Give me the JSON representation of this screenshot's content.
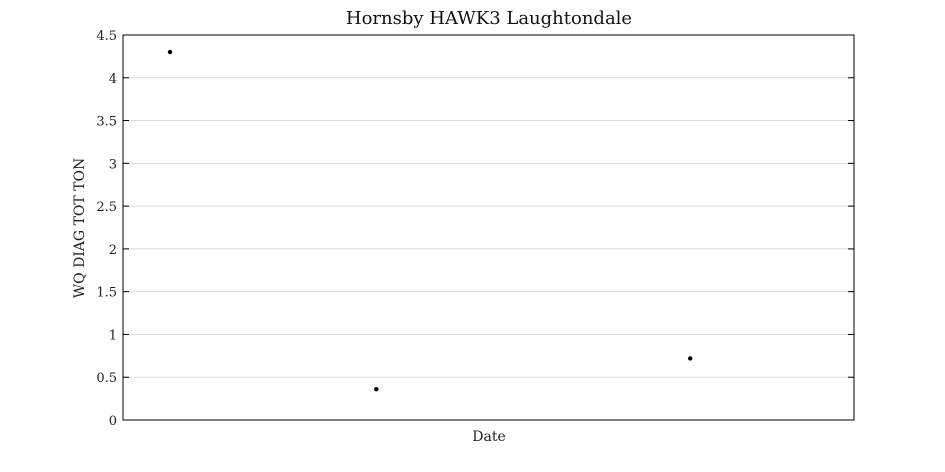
{
  "chart_data": {
    "type": "scatter",
    "title": "Hornsby HAWK3 Laughtondale",
    "xlabel": "Date",
    "ylabel": "WQ DIAG TOT TON",
    "ylim": [
      0,
      4.5
    ],
    "yticks": [
      0,
      0.5,
      1,
      1.5,
      2,
      2.5,
      3,
      3.5,
      4,
      4.5
    ],
    "ytick_labels": [
      "0",
      "0.5",
      "1",
      "1.5",
      "2",
      "2.5",
      "3",
      "3.5",
      "4",
      "4.5"
    ],
    "xticks": [],
    "grid": true,
    "legend": "none",
    "colors": {
      "points": "#000000",
      "grid": "#dcdcdc",
      "axes": "#000000"
    },
    "series": [
      {
        "points": [
          {
            "x": 0.0,
            "y": 4.3
          },
          {
            "x": 0.3485,
            "y": 0.36
          },
          {
            "x": 0.8788,
            "y": 0.72
          }
        ]
      }
    ]
  }
}
